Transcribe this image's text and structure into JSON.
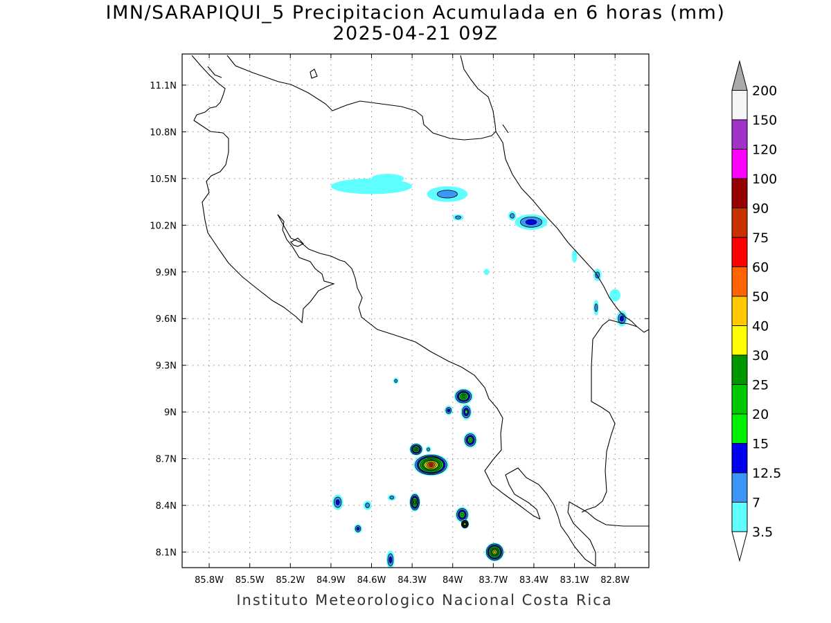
{
  "title": "IMN/SARAPIQUI_5 Precipitacion Acumulada en 6 horas (mm)",
  "subtitle": "2025-04-21 09Z",
  "footer": "Instituto Meteorologico Nacional Costa Rica",
  "map": {
    "lon_range": [
      -86.0,
      -82.55
    ],
    "lat_range": [
      8.0,
      11.3
    ],
    "x_ticks": [
      {
        "value": -85.8,
        "label": "85.8W"
      },
      {
        "value": -85.5,
        "label": "85.5W"
      },
      {
        "value": -85.2,
        "label": "85.2W"
      },
      {
        "value": -84.9,
        "label": "84.9W"
      },
      {
        "value": -84.6,
        "label": "84.6W"
      },
      {
        "value": -84.3,
        "label": "84.3W"
      },
      {
        "value": -84.0,
        "label": "84W"
      },
      {
        "value": -83.7,
        "label": "83.7W"
      },
      {
        "value": -83.4,
        "label": "83.4W"
      },
      {
        "value": -83.1,
        "label": "83.1W"
      },
      {
        "value": -82.8,
        "label": "82.8W"
      }
    ],
    "y_ticks": [
      {
        "value": 8.1,
        "label": "8.1N"
      },
      {
        "value": 8.4,
        "label": "8.4N"
      },
      {
        "value": 8.7,
        "label": "8.7N"
      },
      {
        "value": 9.0,
        "label": "9N"
      },
      {
        "value": 9.3,
        "label": "9.3N"
      },
      {
        "value": 9.6,
        "label": "9.6N"
      },
      {
        "value": 9.9,
        "label": "9.9N"
      },
      {
        "value": 10.2,
        "label": "10.2N"
      },
      {
        "value": 10.5,
        "label": "10.5N"
      },
      {
        "value": 10.8,
        "label": "10.8N"
      },
      {
        "value": 11.1,
        "label": "11.1N"
      }
    ],
    "grid": "dotted"
  },
  "legend": {
    "levels": [
      {
        "label": "3.5",
        "color": "#5fffff"
      },
      {
        "label": "7",
        "color": "#3c96f5"
      },
      {
        "label": "12.5",
        "color": "#0000f0"
      },
      {
        "label": "15",
        "color": "#00f000"
      },
      {
        "label": "20",
        "color": "#00c800"
      },
      {
        "label": "25",
        "color": "#009600"
      },
      {
        "label": "30",
        "color": "#ffff00"
      },
      {
        "label": "40",
        "color": "#ffc800"
      },
      {
        "label": "50",
        "color": "#ff6400"
      },
      {
        "label": "60",
        "color": "#ff0000"
      },
      {
        "label": "75",
        "color": "#c83200"
      },
      {
        "label": "90",
        "color": "#960000"
      },
      {
        "label": "100",
        "color": "#ff00ff"
      },
      {
        "label": "120",
        "color": "#a032c8"
      },
      {
        "label": "150",
        "color": "#f5f5f5"
      },
      {
        "label": "200",
        "color": "#aaaaaa"
      }
    ]
  },
  "rain_cells": [
    {
      "lon": -84.16,
      "lat": 8.66,
      "rx": 0.13,
      "ry": 0.07,
      "max": 60
    },
    {
      "lon": -84.27,
      "lat": 8.76,
      "rx": 0.05,
      "ry": 0.04,
      "max": 25
    },
    {
      "lon": -84.28,
      "lat": 8.42,
      "rx": 0.04,
      "ry": 0.06,
      "max": 25
    },
    {
      "lon": -83.93,
      "lat": 8.34,
      "rx": 0.05,
      "ry": 0.05,
      "max": 20
    },
    {
      "lon": -83.91,
      "lat": 8.28,
      "rx": 0.03,
      "ry": 0.03,
      "max": 30
    },
    {
      "lon": -83.92,
      "lat": 9.1,
      "rx": 0.07,
      "ry": 0.05,
      "max": 25
    },
    {
      "lon": -83.9,
      "lat": 9.0,
      "rx": 0.04,
      "ry": 0.05,
      "max": 15
    },
    {
      "lon": -83.87,
      "lat": 8.82,
      "rx": 0.05,
      "ry": 0.05,
      "max": 20
    },
    {
      "lon": -84.03,
      "lat": 9.01,
      "rx": 0.03,
      "ry": 0.03,
      "max": 12.5
    },
    {
      "lon": -83.69,
      "lat": 8.1,
      "rx": 0.07,
      "ry": 0.06,
      "max": 40
    },
    {
      "lon": -84.85,
      "lat": 8.42,
      "rx": 0.04,
      "ry": 0.05,
      "max": 12.5
    },
    {
      "lon": -84.7,
      "lat": 8.25,
      "rx": 0.03,
      "ry": 0.03,
      "max": 12.5
    },
    {
      "lon": -84.63,
      "lat": 8.4,
      "rx": 0.03,
      "ry": 0.03,
      "max": 7
    },
    {
      "lon": -84.46,
      "lat": 8.05,
      "rx": 0.03,
      "ry": 0.06,
      "max": 12.5
    },
    {
      "lon": -84.45,
      "lat": 8.45,
      "rx": 0.03,
      "ry": 0.02,
      "max": 7
    },
    {
      "lon": -84.42,
      "lat": 9.2,
      "rx": 0.02,
      "ry": 0.02,
      "max": 7
    },
    {
      "lon": -84.18,
      "lat": 8.76,
      "rx": 0.02,
      "ry": 0.02,
      "max": 7
    },
    {
      "lon": -83.42,
      "lat": 10.22,
      "rx": 0.12,
      "ry": 0.05,
      "max": 12.5
    },
    {
      "lon": -83.56,
      "lat": 10.26,
      "rx": 0.03,
      "ry": 0.03,
      "max": 7
    },
    {
      "lon": -83.96,
      "lat": 10.25,
      "rx": 0.04,
      "ry": 0.02,
      "max": 7
    },
    {
      "lon": -84.6,
      "lat": 10.45,
      "rx": 0.3,
      "ry": 0.05,
      "max": 3.5
    },
    {
      "lon": -84.04,
      "lat": 10.4,
      "rx": 0.15,
      "ry": 0.05,
      "max": 7
    },
    {
      "lon": -84.48,
      "lat": 10.5,
      "rx": 0.12,
      "ry": 0.03,
      "max": 3.5
    },
    {
      "lon": -82.75,
      "lat": 9.6,
      "rx": 0.04,
      "ry": 0.05,
      "max": 12.5
    },
    {
      "lon": -82.93,
      "lat": 9.88,
      "rx": 0.03,
      "ry": 0.04,
      "max": 7
    },
    {
      "lon": -82.94,
      "lat": 9.67,
      "rx": 0.02,
      "ry": 0.05,
      "max": 7
    },
    {
      "lon": -82.8,
      "lat": 9.75,
      "rx": 0.04,
      "ry": 0.04,
      "max": 3.5
    },
    {
      "lon": -83.1,
      "lat": 10.0,
      "rx": 0.02,
      "ry": 0.04,
      "max": 3.5
    },
    {
      "lon": -83.75,
      "lat": 9.9,
      "rx": 0.02,
      "ry": 0.02,
      "max": 3.5
    }
  ]
}
